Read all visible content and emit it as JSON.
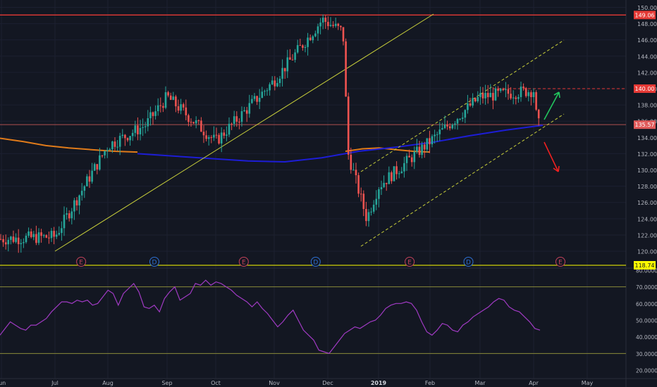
{
  "chart_data": [
    {
      "type": "candlestick",
      "title": "",
      "x_tick_labels": [
        "Jun",
        "Jul",
        "Aug",
        "Sep",
        "Oct",
        "Nov",
        "Dec",
        "2019",
        "Feb",
        "Mar",
        "Apr",
        "May"
      ],
      "y_tick_labels": [
        "120.00",
        "122.00",
        "124.00",
        "126.00",
        "128.00",
        "130.00",
        "132.00",
        "134.00",
        "136.00",
        "138.00",
        "140.00",
        "142.00",
        "144.00",
        "146.00",
        "148.00",
        "150.00"
      ],
      "ylim": [
        119.4,
        150.3
      ],
      "price_labels": [
        {
          "text": "149.06",
          "value": 149.06,
          "color": "#e53935"
        },
        {
          "text": "140.00",
          "value": 140.0,
          "color": "#e53935"
        },
        {
          "text": "135.57",
          "value": 135.57,
          "color": "#e05a5a"
        },
        {
          "text": "118.74",
          "value": 118.74,
          "color": "#ffff00"
        }
      ],
      "event_markers": [
        {
          "label": "E",
          "x": 0.1235,
          "color": "#c2415a"
        },
        {
          "label": "D",
          "x": 0.235,
          "color": "#2d6fd0"
        },
        {
          "label": "E",
          "x": 0.371,
          "color": "#c2415a"
        },
        {
          "label": "D",
          "x": 0.4805,
          "color": "#2d6fd0"
        },
        {
          "label": "E",
          "x": 0.6235,
          "color": "#c2415a"
        },
        {
          "label": "D",
          "x": 0.713,
          "color": "#2d6fd0"
        },
        {
          "label": "E",
          "x": 0.853,
          "color": "#c2415a"
        }
      ],
      "key_points": [
        {
          "date": "2018-06",
          "close": 121.5
        },
        {
          "date": "2018-07",
          "close": 121.8
        },
        {
          "date": "2018-08",
          "close": 133.0
        },
        {
          "date": "2018-08-20",
          "close": 135.5
        },
        {
          "date": "2018-09",
          "close": 139.0
        },
        {
          "date": "2018-10",
          "close": 133.5
        },
        {
          "date": "2018-11",
          "close": 141.0
        },
        {
          "date": "2018-11-28",
          "close": 148.5
        },
        {
          "date": "2018-12-10",
          "close": 147.0
        },
        {
          "date": "2018-12-13",
          "close": 132.0
        },
        {
          "date": "2018-12-24",
          "close": 124.0
        },
        {
          "date": "2019-01",
          "close": 128.0
        },
        {
          "date": "2019-02",
          "close": 133.5
        },
        {
          "date": "2019-03",
          "close": 139.0
        },
        {
          "date": "2019-04-01",
          "close": 139.8
        },
        {
          "date": "2019-04-03",
          "close": 135.6
        }
      ],
      "indicators": [
        {
          "name": "orange moving average",
          "color": "#e07b1a",
          "values": [
            133.9,
            133.5,
            133.0,
            132.7,
            132.5,
            132.3,
            132.2
          ]
        },
        {
          "name": "blue moving average",
          "color": "#1d1dd6",
          "values": [
            132.0,
            131.7,
            131.4,
            131.1,
            131.0,
            131.5,
            132.3,
            132.8,
            133.4,
            134.2,
            134.9,
            135.5
          ]
        }
      ],
      "annotations": [
        "horizontal resistance at 149.06",
        "horizontal resistance at 140.00 (dashed)",
        "horizontal support at 135.57",
        "rising trendline (yellow)",
        "rising dashed channel (yellow)",
        "green arrow pointing up",
        "red arrow pointing down"
      ]
    },
    {
      "type": "line",
      "title": "",
      "y_tick_labels": [
        "80.0000",
        "70.0000",
        "60.0000",
        "50.0000",
        "40.0000",
        "30.0000",
        "20.0000"
      ],
      "ylim": [
        20,
        80
      ],
      "guide_levels": [
        30,
        70
      ],
      "series": [
        {
          "color": "#a03ac3",
          "values": [
            41,
            45,
            49,
            47,
            45,
            44,
            47,
            47,
            49,
            51,
            55,
            58,
            61,
            61,
            60,
            62,
            61,
            62,
            59,
            60,
            64,
            68,
            66,
            59,
            66,
            69,
            72,
            67,
            58,
            57,
            59,
            55,
            63,
            67,
            70,
            62,
            64,
            66,
            72,
            71,
            74,
            71,
            73,
            72,
            70,
            68,
            65,
            63,
            61,
            58,
            61,
            57,
            54,
            50,
            46,
            49,
            53,
            56,
            50,
            44,
            41,
            38,
            32,
            31,
            30,
            34,
            38,
            42,
            44,
            46,
            45,
            47,
            49,
            50,
            53,
            57,
            59,
            60,
            60,
            61,
            60,
            56,
            49,
            43,
            41,
            44,
            48,
            47,
            44,
            43,
            47,
            49,
            52,
            54,
            56,
            58,
            61,
            63,
            62,
            58,
            56,
            55,
            52,
            49,
            45,
            44
          ]
        }
      ]
    }
  ]
}
